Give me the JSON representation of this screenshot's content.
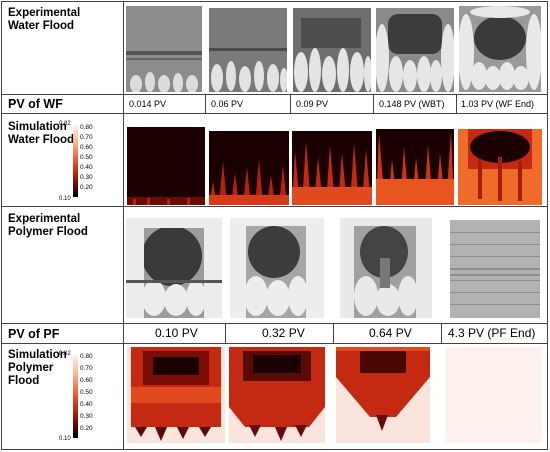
{
  "rows": {
    "experimental_wf": {
      "label": "Experimental\nWater Flood"
    },
    "pv_wf": {
      "label": "PV of WF",
      "values": [
        "0.014 PV",
        "0.06 PV",
        "0.09 PV",
        "0.148 PV (WBT)",
        "1.03 PV (WF End)"
      ]
    },
    "simulation_wf": {
      "label": "Simulation\nWater Flood"
    },
    "experimental_pf": {
      "label": "Experimental\nPolymer Flood"
    },
    "pv_pf": {
      "label": "PV of PF",
      "values": [
        "0.10 PV",
        "0.32 PV",
        "0.64 PV",
        "4.3 PV (PF End)"
      ]
    },
    "simulation_pf": {
      "label": "Simulation\nPolymer\nFlood"
    }
  },
  "colorbar": {
    "max_label": "0.82",
    "min_label": "0.10",
    "ticks": [
      "0.80",
      "0.70",
      "0.60",
      "0.50",
      "0.40",
      "0.30",
      "0.20"
    ]
  },
  "colors": {
    "border": "#444444",
    "sim_dark": "#1a0000",
    "sim_red": "#b5200f",
    "sim_orange": "#f06a2a",
    "sim_pink": "#fbe3de"
  }
}
